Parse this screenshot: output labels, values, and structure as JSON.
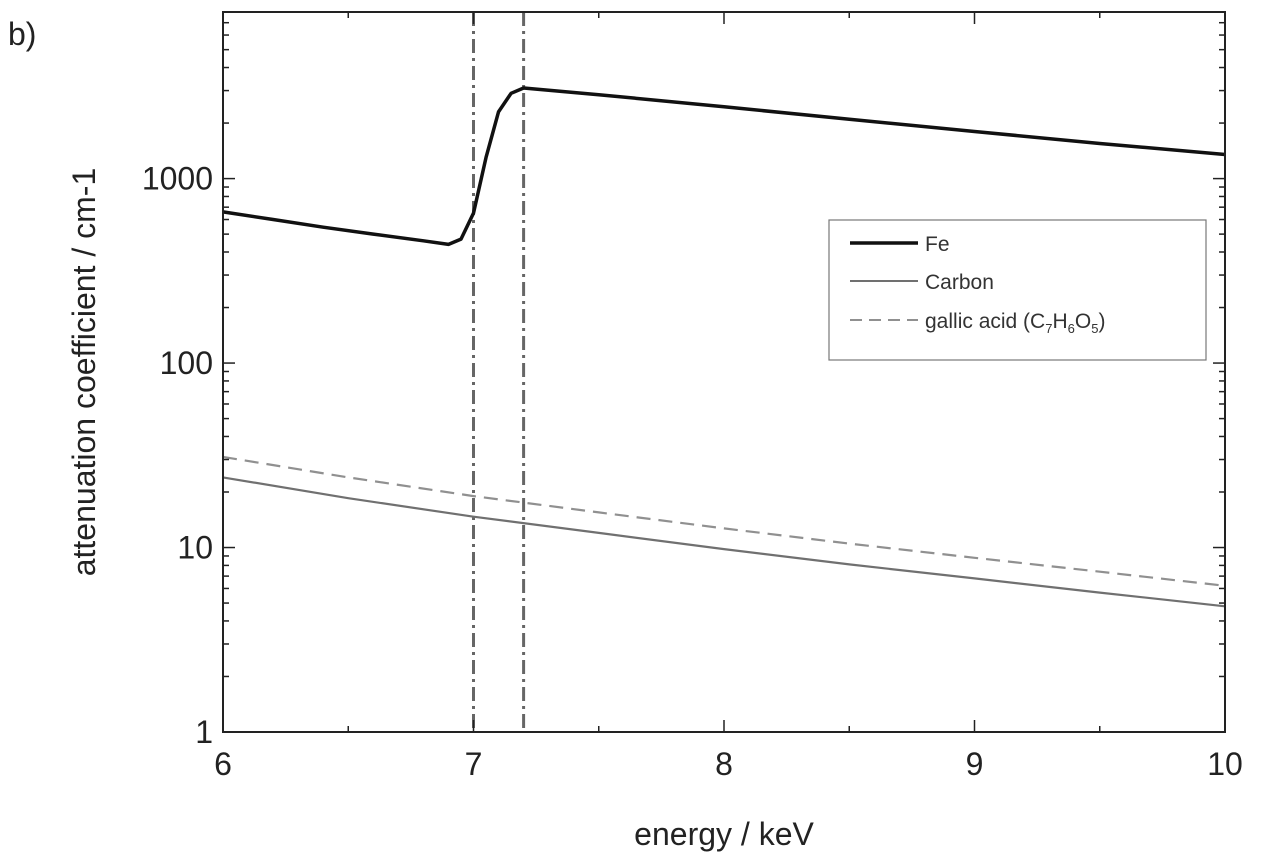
{
  "panel_label": "b)",
  "chart_data": {
    "type": "line",
    "xlabel": "energy / keV",
    "ylabel": "attenuation coefficient / cm-1",
    "xlim": [
      6,
      10
    ],
    "ylim": [
      1,
      8000
    ],
    "yscale": "log",
    "x_ticks": [
      6,
      7,
      8,
      9,
      10
    ],
    "x_tick_labels": [
      "6",
      "7",
      "8",
      "9",
      "10"
    ],
    "y_ticks": [
      1,
      10,
      100,
      1000
    ],
    "y_tick_labels": [
      "1",
      "10",
      "100",
      "1000"
    ],
    "grid": false,
    "legend_position": "right",
    "vlines": [
      7.0,
      7.2
    ],
    "series": [
      {
        "name": "Fe",
        "style": "solid-thick",
        "color": "#111111",
        "x": [
          6.0,
          6.2,
          6.4,
          6.6,
          6.8,
          6.9,
          6.95,
          7.0,
          7.05,
          7.1,
          7.15,
          7.2,
          7.5,
          8.0,
          8.5,
          9.0,
          9.5,
          10.0
        ],
        "y": [
          660,
          600,
          545,
          500,
          460,
          440,
          470,
          650,
          1300,
          2300,
          2900,
          3100,
          2850,
          2450,
          2100,
          1800,
          1550,
          1350
        ]
      },
      {
        "name": "Carbon",
        "style": "solid",
        "color": "#707070",
        "x": [
          6.0,
          6.5,
          7.0,
          7.5,
          8.0,
          8.5,
          9.0,
          9.5,
          10.0
        ],
        "y": [
          24,
          18.5,
          14.7,
          12,
          9.8,
          8.1,
          6.8,
          5.7,
          4.8
        ]
      },
      {
        "name": "gallic acid (C7H6O5)",
        "name_parts": {
          "pre": "gallic acid (C",
          "s1": "7",
          "mid1": "H",
          "s2": "6",
          "mid2": "O",
          "s3": "5",
          "post": ")"
        },
        "style": "dashed",
        "color": "#909090",
        "x": [
          6.0,
          6.5,
          7.0,
          7.5,
          8.0,
          8.5,
          9.0,
          9.5,
          10.0
        ],
        "y": [
          31,
          24,
          19,
          15.5,
          12.7,
          10.5,
          8.8,
          7.4,
          6.2
        ]
      }
    ]
  }
}
